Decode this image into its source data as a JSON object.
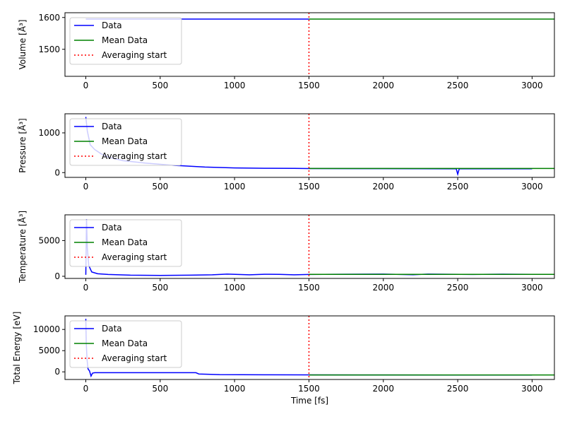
{
  "chart_data": [
    {
      "type": "line",
      "ylabel": "Volume [$\\AA^3$]",
      "ylabel_text": "Volume [Å³]",
      "xlim": [
        -140,
        3150
      ],
      "ylim": [
        1415,
        1615
      ],
      "xticks": [
        0,
        500,
        1000,
        1500,
        2000,
        2500,
        3000
      ],
      "yticks": [
        1500,
        1600
      ],
      "averaging_start": 1500,
      "series": [
        {
          "name": "Data",
          "color": "#0000ff",
          "style": "solid",
          "points": [
            [
              0,
              1595
            ],
            [
              100,
              1595
            ],
            [
              500,
              1595
            ],
            [
              1000,
              1595
            ],
            [
              1500,
              1595
            ]
          ]
        },
        {
          "name": "Mean Data",
          "color": "#008000",
          "style": "solid",
          "points": [
            [
              1500,
              1595
            ],
            [
              3150,
              1595
            ]
          ]
        }
      ],
      "legend": {
        "position": "upper-left",
        "entries": [
          "Data",
          "Mean Data",
          "Averaging start"
        ]
      }
    },
    {
      "type": "line",
      "ylabel_text": "Pressure [Å³]",
      "xlim": [
        -140,
        3150
      ],
      "ylim": [
        -120,
        1480
      ],
      "xticks": [
        0,
        500,
        1000,
        1500,
        2000,
        2500,
        3000
      ],
      "yticks": [
        0,
        1000
      ],
      "averaging_start": 1500,
      "series": [
        {
          "name": "Data",
          "color": "#0000ff",
          "style": "solid",
          "points": [
            [
              0,
              1400
            ],
            [
              10,
              1050
            ],
            [
              30,
              700
            ],
            [
              60,
              580
            ],
            [
              100,
              480
            ],
            [
              150,
              390
            ],
            [
              250,
              300
            ],
            [
              400,
              240
            ],
            [
              600,
              180
            ],
            [
              800,
              140
            ],
            [
              1000,
              118
            ],
            [
              1200,
              110
            ],
            [
              1400,
              105
            ],
            [
              1500,
              102
            ],
            [
              2000,
              100
            ],
            [
              2490,
              95
            ],
            [
              2500,
              -40
            ],
            [
              2510,
              95
            ],
            [
              3000,
              95
            ]
          ]
        },
        {
          "name": "Mean Data",
          "color": "#008000",
          "style": "solid",
          "points": [
            [
              1500,
              104
            ],
            [
              3150,
              104
            ]
          ]
        }
      ],
      "legend": {
        "position": "upper-left",
        "entries": [
          "Data",
          "Mean Data",
          "Averaging start"
        ]
      }
    },
    {
      "type": "line",
      "ylabel_text": "Temperature [Å³]",
      "xlim": [
        -140,
        3150
      ],
      "ylim": [
        -300,
        8600
      ],
      "xticks": [
        0,
        500,
        1000,
        1500,
        2000,
        2500,
        3000
      ],
      "yticks": [
        0,
        5000
      ],
      "averaging_start": 1500,
      "series": [
        {
          "name": "Data",
          "color": "#0000ff",
          "style": "solid",
          "points": [
            [
              0,
              200
            ],
            [
              5,
              8000
            ],
            [
              10,
              4000
            ],
            [
              20,
              1500
            ],
            [
              40,
              600
            ],
            [
              80,
              350
            ],
            [
              150,
              250
            ],
            [
              300,
              150
            ],
            [
              500,
              120
            ],
            [
              700,
              150
            ],
            [
              850,
              200
            ],
            [
              950,
              300
            ],
            [
              1100,
              200
            ],
            [
              1200,
              280
            ],
            [
              1300,
              260
            ],
            [
              1400,
              200
            ],
            [
              1500,
              250
            ],
            [
              1700,
              280
            ],
            [
              2000,
              300
            ],
            [
              2200,
              220
            ],
            [
              2300,
              300
            ],
            [
              2600,
              250
            ],
            [
              2800,
              290
            ],
            [
              3000,
              260
            ]
          ]
        },
        {
          "name": "Mean Data",
          "color": "#008000",
          "style": "solid",
          "points": [
            [
              1500,
              270
            ],
            [
              3150,
              270
            ]
          ]
        }
      ],
      "legend": {
        "position": "upper-left",
        "entries": [
          "Data",
          "Mean Data",
          "Averaging start"
        ]
      }
    },
    {
      "type": "line",
      "ylabel_text": "Total Energy [eV]",
      "xlabel_text": "Time [fs]",
      "xlim": [
        -140,
        3150
      ],
      "ylim": [
        -1800,
        13200
      ],
      "xticks": [
        0,
        500,
        1000,
        1500,
        2000,
        2500,
        3000
      ],
      "yticks": [
        0,
        5000,
        10000
      ],
      "averaging_start": 1500,
      "series": [
        {
          "name": "Data",
          "color": "#0000ff",
          "style": "solid",
          "points": [
            [
              0,
              12500
            ],
            [
              3,
              7000
            ],
            [
              8,
              3000
            ],
            [
              15,
              700
            ],
            [
              25,
              200
            ],
            [
              35,
              -1000
            ],
            [
              45,
              -300
            ],
            [
              60,
              -200
            ],
            [
              200,
              -200
            ],
            [
              500,
              -200
            ],
            [
              740,
              -200
            ],
            [
              760,
              -500
            ],
            [
              900,
              -650
            ],
            [
              1200,
              -700
            ],
            [
              1500,
              -720
            ],
            [
              2000,
              -740
            ],
            [
              3000,
              -760
            ]
          ]
        },
        {
          "name": "Mean Data",
          "color": "#008000",
          "style": "solid",
          "points": [
            [
              1500,
              -730
            ],
            [
              3150,
              -730
            ]
          ]
        }
      ],
      "legend": {
        "position": "upper-left",
        "entries": [
          "Data",
          "Mean Data",
          "Averaging start"
        ]
      }
    }
  ],
  "colors": {
    "data": "#0000ff",
    "mean": "#008000",
    "avg_start": "#ff0000"
  }
}
